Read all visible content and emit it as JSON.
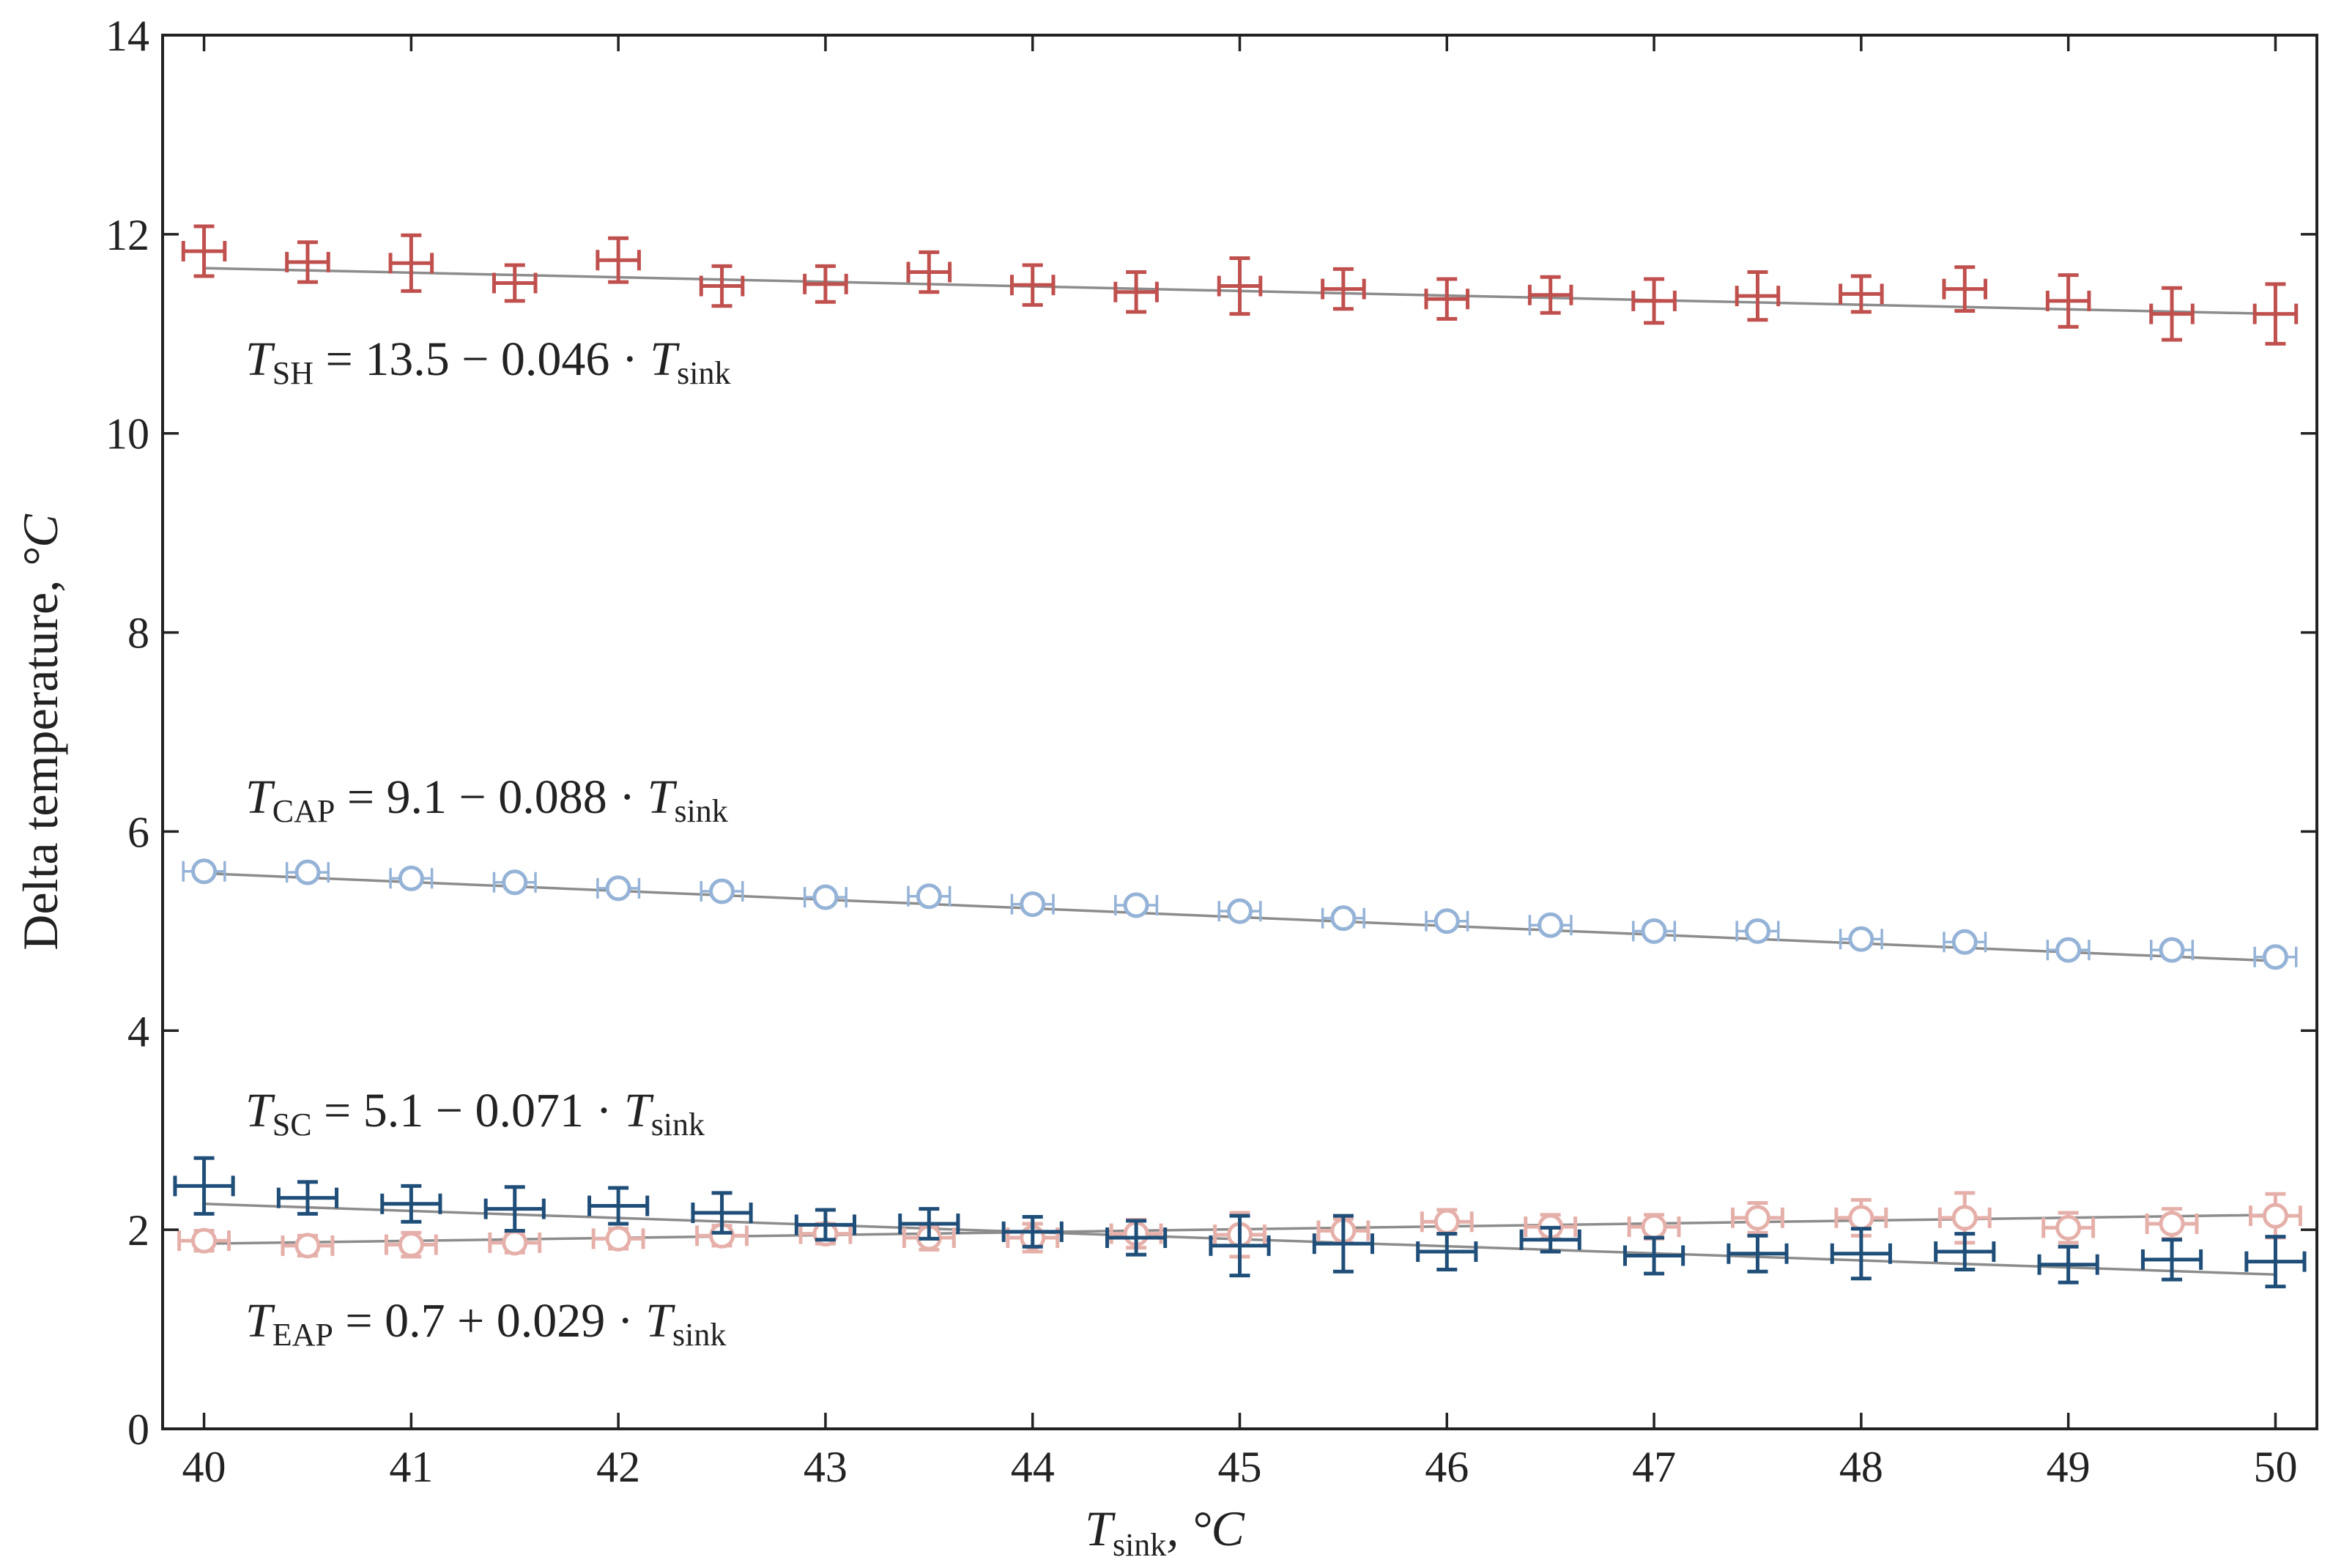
{
  "chart_data": {
    "type": "scatter",
    "xlabel": {
      "main": "T",
      "sub": "sink",
      "suffix": ", °C"
    },
    "ylabel": {
      "prefix": "Delta temperature, ",
      "suffix": "°C"
    },
    "xlim": [
      39.8,
      50.2
    ],
    "ylim": [
      0,
      14
    ],
    "xticks": [
      40,
      41,
      42,
      43,
      44,
      45,
      46,
      47,
      48,
      49,
      50
    ],
    "yticks": [
      0,
      2,
      4,
      6,
      8,
      10,
      12,
      14
    ],
    "grid": false,
    "colors": {
      "sh": "#c0504d",
      "cap": "#95b3d7",
      "sc": "#1f4e79",
      "eap": "#e6b0aa",
      "fit": "#8c8c8c",
      "axis": "#222222"
    },
    "series": [
      {
        "id": "sh",
        "name": "T_SH",
        "marker": "none",
        "x": [
          40,
          40.5,
          41,
          41.5,
          42,
          42.5,
          43,
          43.5,
          44,
          44.5,
          45,
          45.5,
          46,
          46.5,
          47,
          47.5,
          48,
          48.5,
          49,
          49.5,
          50
        ],
        "y": [
          11.83,
          11.72,
          11.71,
          11.51,
          11.74,
          11.48,
          11.5,
          11.62,
          11.49,
          11.42,
          11.48,
          11.45,
          11.35,
          11.39,
          11.33,
          11.38,
          11.4,
          11.45,
          11.33,
          11.2,
          11.2
        ],
        "yerr": [
          0.25,
          0.2,
          0.28,
          0.18,
          0.22,
          0.2,
          0.18,
          0.2,
          0.2,
          0.2,
          0.28,
          0.2,
          0.2,
          0.18,
          0.22,
          0.24,
          0.18,
          0.22,
          0.26,
          0.26,
          0.3
        ],
        "xerr": 0.1,
        "fit": {
          "intercept": 13.5,
          "slope": -0.046
        },
        "equation": {
          "main": "T",
          "sub": "SH",
          "rhs": " = 13.5 − 0.046 · ",
          "tail": "T",
          "tail_sub": "sink"
        }
      },
      {
        "id": "cap",
        "name": "T_CAP",
        "marker": "circle",
        "x": [
          40,
          40.5,
          41,
          41.5,
          42,
          42.5,
          43,
          43.5,
          44,
          44.5,
          45,
          45.5,
          46,
          46.5,
          47,
          47.5,
          48,
          48.5,
          49,
          49.5,
          50
        ],
        "y": [
          5.6,
          5.59,
          5.53,
          5.49,
          5.43,
          5.4,
          5.34,
          5.35,
          5.27,
          5.26,
          5.2,
          5.13,
          5.1,
          5.06,
          5.0,
          5.0,
          4.92,
          4.89,
          4.81,
          4.81,
          4.74
        ],
        "yerr": [
          0.05,
          0.05,
          0.05,
          0.05,
          0.05,
          0.05,
          0.05,
          0.05,
          0.05,
          0.05,
          0.05,
          0.05,
          0.05,
          0.05,
          0.05,
          0.05,
          0.05,
          0.05,
          0.05,
          0.05,
          0.05
        ],
        "xerr": 0.1,
        "fit": {
          "intercept": 9.1,
          "slope": -0.088
        },
        "equation": {
          "main": "T",
          "sub": "CAP",
          "rhs": " = 9.1 − 0.088 · ",
          "tail": "T",
          "tail_sub": "sink"
        }
      },
      {
        "id": "sc",
        "name": "T_SC",
        "marker": "none",
        "x": [
          40,
          40.5,
          41,
          41.5,
          42,
          42.5,
          43,
          43.5,
          44,
          44.5,
          45,
          45.5,
          46,
          46.5,
          47,
          47.5,
          48,
          48.5,
          49,
          49.5,
          50
        ],
        "y": [
          2.44,
          2.32,
          2.26,
          2.21,
          2.24,
          2.17,
          2.05,
          2.06,
          1.98,
          1.92,
          1.84,
          1.86,
          1.78,
          1.9,
          1.74,
          1.76,
          1.76,
          1.78,
          1.65,
          1.7,
          1.68
        ],
        "yerr": [
          0.28,
          0.16,
          0.18,
          0.22,
          0.18,
          0.2,
          0.15,
          0.15,
          0.15,
          0.17,
          0.3,
          0.28,
          0.18,
          0.12,
          0.18,
          0.18,
          0.25,
          0.18,
          0.18,
          0.2,
          0.25
        ],
        "xerr": 0.14,
        "fit": {
          "intercept": 5.1,
          "slope": -0.071
        },
        "equation": {
          "main": "T",
          "sub": "SC",
          "rhs": " = 5.1 − 0.071 · ",
          "tail": "T",
          "tail_sub": "sink"
        }
      },
      {
        "id": "eap",
        "name": "T_EAP",
        "marker": "circle",
        "x": [
          40,
          40.5,
          41,
          41.5,
          42,
          42.5,
          43,
          43.5,
          44,
          44.5,
          45,
          45.5,
          46,
          46.5,
          47,
          47.5,
          48,
          48.5,
          49,
          49.5,
          50
        ],
        "y": [
          1.89,
          1.84,
          1.85,
          1.87,
          1.91,
          1.94,
          1.96,
          1.92,
          1.92,
          1.96,
          1.95,
          1.99,
          2.08,
          2.03,
          2.03,
          2.12,
          2.12,
          2.12,
          2.02,
          2.06,
          2.14
        ],
        "yerr": [
          0.1,
          0.1,
          0.12,
          0.1,
          0.1,
          0.1,
          0.1,
          0.12,
          0.14,
          0.14,
          0.22,
          0.12,
          0.12,
          0.12,
          0.12,
          0.15,
          0.18,
          0.25,
          0.15,
          0.15,
          0.22
        ],
        "xerr": 0.12,
        "fit": {
          "intercept": 0.7,
          "slope": 0.029
        },
        "equation": {
          "main": "T",
          "sub": "EAP",
          "rhs": " = 0.7 + 0.029 · ",
          "tail": "T",
          "tail_sub": "sink"
        }
      }
    ]
  }
}
